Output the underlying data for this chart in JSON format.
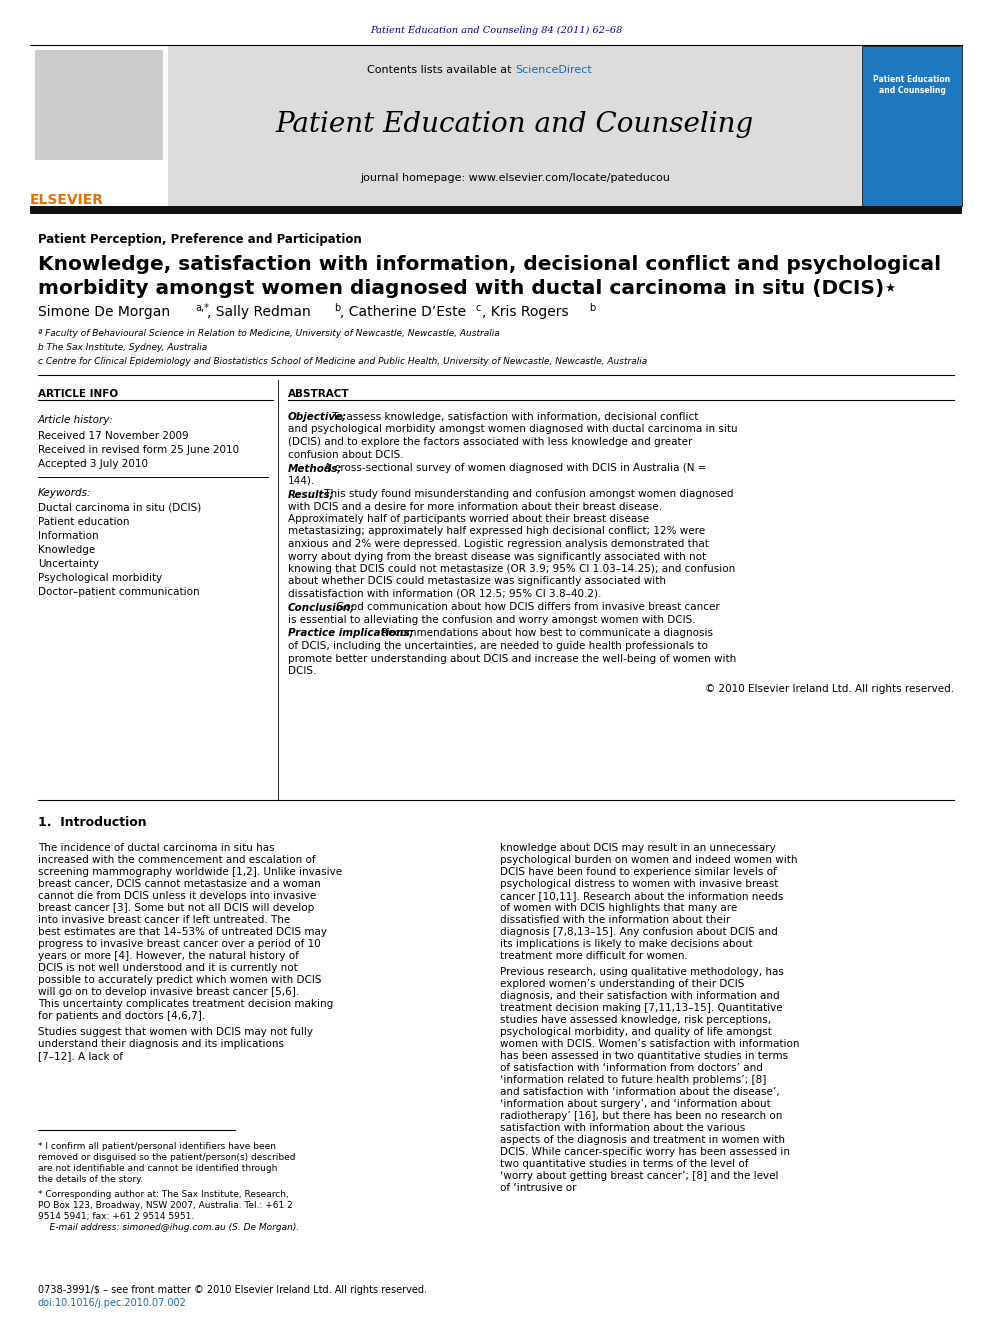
{
  "journal_ref": "Patient Education and Counseling 84 (2011) 62–68",
  "journal_name": "Patient Education and Counseling",
  "journal_homepage": "journal homepage: www.elsevier.com/locate/pateducou",
  "section_label": "Patient Perception, Preference and Participation",
  "title_line1": "Knowledge, satisfaction with information, decisional conflict and psychological",
  "title_line2": "morbidity amongst women diagnosed with ductal carcinoma in situ (DCIS)⋆",
  "author_full": "Simone De Morgan a,*, Sally Redman b, Catherine D’Este c, Kris Rogers b",
  "affil_a": "ª Faculty of Behavioural Science in Relation to Medicine, University of Newcastle, Newcastle, Australia",
  "affil_b": "b The Sax Institute, Sydney, Australia",
  "affil_c": "c Centre for Clinical Epidemiology and Biostatistics School of Medicine and Public Health, University of Newcastle, Newcastle, Australia",
  "article_info_header": "ARTICLE INFO",
  "abstract_header": "ABSTRACT",
  "article_history_header": "Article history:",
  "received1": "Received 17 November 2009",
  "received2": "Received in revised form 25 June 2010",
  "accepted": "Accepted 3 July 2010",
  "keywords_header": "Keywords:",
  "keyword1": "Ductal carcinoma in situ (DCIS)",
  "keyword2": "Patient education",
  "keyword3": "Information",
  "keyword4": "Knowledge",
  "keyword5": "Uncertainty",
  "keyword6": "Psychological morbidity",
  "keyword7": "Doctor–patient communication",
  "objective_label": "Objective;",
  "objective_text": " To assess knowledge, satisfaction with information, decisional conflict and psychological morbidity amongst women diagnosed with ductal carcinoma in situ (DCIS) and to explore the factors associated with less knowledge and greater confusion about DCIS.",
  "methods_label": "Methods;",
  "methods_text": " A cross-sectional survey of women diagnosed with DCIS in Australia (N = 144).",
  "results_label": "Results;",
  "results_text": " This study found misunderstanding and confusion amongst women diagnosed with DCIS and a desire for more information about their breast disease. Approximately half of participants worried about their breast disease metastasizing; approximately half expressed high decisional conflict; 12% were anxious and 2% were depressed. Logistic regression analysis demonstrated that worry about dying from the breast disease was significantly associated with not knowing that DCIS could not metastasize (OR 3.9; 95% CI 1.03–14.25); and confusion about whether DCIS could metastasize was significantly associated with dissatisfaction with information (OR 12.5; 95% CI 3.8–40.2).",
  "conclusion_label": "Conclusion;",
  "conclusion_text": " Good communication about how DCIS differs from invasive breast cancer is essential to alleviating the confusion and worry amongst women with DCIS.",
  "practice_label": "Practice implications;",
  "practice_text": " Recommendations about how best to communicate a diagnosis of DCIS, including the uncertainties, are needed to guide health professionals to promote better understanding about DCIS and increase the well-being of women with DCIS.",
  "copyright_text": "© 2010 Elsevier Ireland Ltd. All rights reserved.",
  "intro_header": "1.  Introduction",
  "intro_col1_para1": "    The incidence of ductal carcinoma in situ has increased with the commencement and escalation of screening mammography worldwide [1,2]. Unlike invasive breast cancer, DCIS cannot metastasize and a woman cannot die from DCIS unless it develops into invasive breast cancer [3]. Some but not all DCIS will develop into invasive breast cancer if left untreated. The best estimates are that 14–53% of untreated DCIS may progress to invasive breast cancer over a period of 10 years or more [4]. However, the natural history of DCIS is not well understood and it is currently not possible to accurately predict which women with DCIS will go on to develop invasive breast cancer [5,6]. This uncertainty complicates treatment decision making for patients and doctors [4,6,7].",
  "intro_col1_para2": "    Studies suggest that women with DCIS may not fully understand their diagnosis and its implications [7–12]. A lack of",
  "intro_col2_para1": "knowledge about DCIS may result in an unnecessary psychological burden on women and indeed women with DCIS have been found to experience similar levels of psychological distress to women with invasive breast cancer [10,11]. Research about the information needs of women with DCIS highlights that many are dissatisfied with the information about their diagnosis [7,8,13–15]. Any confusion about DCIS and its implications is likely to make decisions about treatment more difficult for women.",
  "intro_col2_para2": "    Previous research, using qualitative methodology, has explored women’s understanding of their DCIS diagnosis, and their satisfaction with information and treatment decision making [7,11,13–15]. Quantitative studies have assessed knowledge, risk perceptions, psychological morbidity, and quality of life amongst women with DCIS. Women’s satisfaction with information has been assessed in two quantitative studies in terms of satisfaction with ‘information from doctors’ and ‘information related to future health problems’; [8] and satisfaction with ‘information about the disease’, ‘information about surgery’, and ‘information about radiotherapy’ [16], but there has been no research on satisfaction with information about the various aspects of the diagnosis and treatment in women with DCIS. While cancer-specific worry has been assessed in two quantitative studies in terms of the level of ‘worry about getting breast cancer’; [8] and the level of ‘intrusive or",
  "footnote1": "  * I confirm all patient/personal identifiers have been removed or disguised so the patient/person(s) described are not identifiable and cannot be identified through the details of the story.",
  "footnote2": "  * Corresponding author at: The Sax Institute, Research, PO Box 123, Broadway, NSW 2007, Australia. Tel.: +61 2 9514 5941; fax: +61 2 9514 5951.",
  "footnote3": "    E-mail address: simoned@ihug.com.au (S. De Morgan).",
  "issn_text": "0738-3991/$ – see front matter © 2010 Elsevier Ireland Ltd. All rights reserved.",
  "doi_text": "doi:10.1016/j.pec.2010.07.002",
  "elsevier_color": "#E87000",
  "header_bg_color": "#DCDCDC",
  "dark_bar_color": "#111111",
  "journal_ref_color": "#00008B",
  "sciencedirect_color": "#1A6AB5",
  "doi_color": "#1A6AB5",
  "body_text_color": "#000000"
}
